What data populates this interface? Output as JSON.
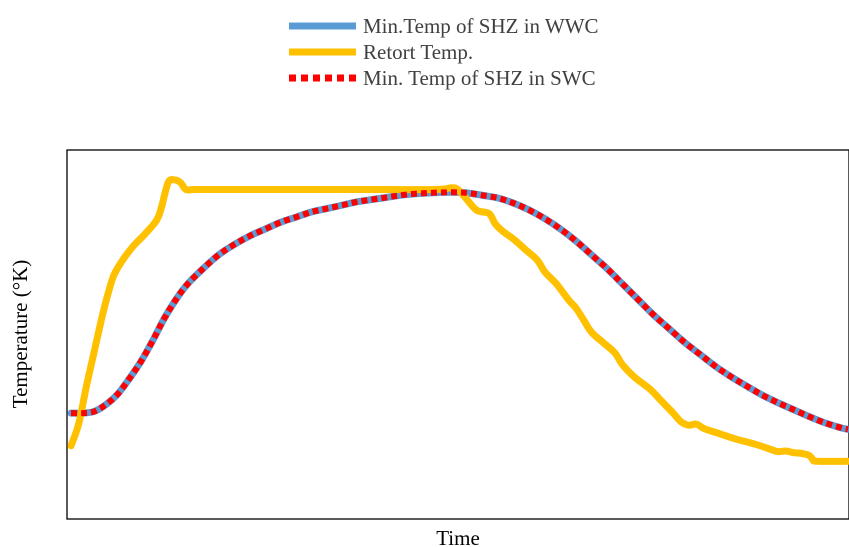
{
  "chart_data": {
    "type": "line",
    "title": "",
    "xlabel": "Time",
    "ylabel": "Temperature (°K)",
    "xlim": [
      0,
      100
    ],
    "ylim": [
      0,
      100
    ],
    "grid": false,
    "legend_position": "top-center",
    "series": [
      {
        "name": "Min.Temp of SHZ in WWC",
        "color": "#5b9bd5",
        "style": "solid",
        "points": [
          [
            0,
            27.0
          ],
          [
            1.5,
            27.0
          ],
          [
            3,
            27.5
          ],
          [
            4.5,
            29.5
          ],
          [
            6,
            32.5
          ],
          [
            7.5,
            37.0
          ],
          [
            9,
            42.0
          ],
          [
            10.5,
            48.0
          ],
          [
            12,
            54.5
          ],
          [
            13.5,
            60.0
          ],
          [
            15,
            64.5
          ],
          [
            17,
            69.0
          ],
          [
            19,
            73.0
          ],
          [
            21,
            76.0
          ],
          [
            23,
            78.5
          ],
          [
            25,
            80.5
          ],
          [
            27,
            82.5
          ],
          [
            29,
            84.0
          ],
          [
            31,
            85.5
          ],
          [
            33,
            86.5
          ],
          [
            35,
            87.5
          ],
          [
            37,
            88.5
          ],
          [
            40,
            89.5
          ],
          [
            43,
            90.5
          ],
          [
            46,
            91.0
          ],
          [
            49,
            91.2
          ],
          [
            51,
            91.0
          ],
          [
            53,
            90.3
          ],
          [
            55,
            89.5
          ],
          [
            57,
            88.0
          ],
          [
            59,
            86.0
          ],
          [
            61,
            83.5
          ],
          [
            63,
            80.5
          ],
          [
            65,
            77.0
          ],
          [
            67,
            73.0
          ],
          [
            69,
            69.0
          ],
          [
            71,
            64.5
          ],
          [
            73,
            60.0
          ],
          [
            75,
            55.5
          ],
          [
            77,
            51.5
          ],
          [
            79,
            47.5
          ],
          [
            81,
            44.0
          ],
          [
            83,
            40.5
          ],
          [
            85,
            37.5
          ],
          [
            87,
            34.8
          ],
          [
            89,
            32.2
          ],
          [
            91,
            30.0
          ],
          [
            93,
            28.0
          ],
          [
            95,
            26.0
          ],
          [
            97,
            24.2
          ],
          [
            99,
            22.8
          ],
          [
            100,
            22.3
          ]
        ]
      },
      {
        "name": "Retort Temp.",
        "color": "#ffc000",
        "style": "solid",
        "points": [
          [
            0,
            17.5
          ],
          [
            1,
            24.0
          ],
          [
            2,
            35.0
          ],
          [
            3,
            45.0
          ],
          [
            4,
            55.0
          ],
          [
            4.8,
            62.0
          ],
          [
            5.5,
            67.0
          ],
          [
            6.5,
            71.0
          ],
          [
            8,
            75.5
          ],
          [
            9.5,
            79.0
          ],
          [
            11,
            83.0
          ],
          [
            11.6,
            86.5
          ],
          [
            12.5,
            94.0
          ],
          [
            13.3,
            94.8
          ],
          [
            14.1,
            94.0
          ],
          [
            14.8,
            92.0
          ],
          [
            16,
            92.0
          ],
          [
            20,
            92.0
          ],
          [
            30,
            92.0
          ],
          [
            40,
            92.0
          ],
          [
            47,
            92.0
          ],
          [
            49,
            92.5
          ],
          [
            49.8,
            92.0
          ],
          [
            50.8,
            89.5
          ],
          [
            52.2,
            86.0
          ],
          [
            53.8,
            85.0
          ],
          [
            54.6,
            82.0
          ],
          [
            55.5,
            80.0
          ],
          [
            57,
            77.5
          ],
          [
            58.5,
            74.5
          ],
          [
            60,
            71.5
          ],
          [
            61,
            68.0
          ],
          [
            62.5,
            64.5
          ],
          [
            64,
            60.0
          ],
          [
            65,
            57.5
          ],
          [
            66,
            54.0
          ],
          [
            67,
            50.5
          ],
          [
            68.5,
            47.5
          ],
          [
            70,
            44.5
          ],
          [
            71,
            41.0
          ],
          [
            72.5,
            37.5
          ],
          [
            74.5,
            34.0
          ],
          [
            76,
            30.5
          ],
          [
            77.5,
            27.0
          ],
          [
            78.5,
            24.5
          ],
          [
            79.5,
            23.5
          ],
          [
            80.5,
            23.8
          ],
          [
            81.5,
            22.5
          ],
          [
            83.5,
            21.0
          ],
          [
            85.5,
            19.5
          ],
          [
            88,
            18.0
          ],
          [
            90,
            16.5
          ],
          [
            91,
            15.8
          ],
          [
            92,
            16.0
          ],
          [
            93,
            15.5
          ],
          [
            94,
            15.3
          ],
          [
            95,
            14.7
          ],
          [
            95.5,
            13.5
          ],
          [
            96,
            13.0
          ],
          [
            100,
            13.0
          ]
        ]
      },
      {
        "name": "Min. Temp of SHZ in SWC",
        "color": "#ff0000",
        "style": "dotted",
        "points": [
          [
            0,
            27.0
          ],
          [
            1.5,
            27.0
          ],
          [
            3,
            27.5
          ],
          [
            4.5,
            29.5
          ],
          [
            6,
            32.5
          ],
          [
            7.5,
            37.0
          ],
          [
            9,
            42.0
          ],
          [
            10.5,
            48.0
          ],
          [
            12,
            54.5
          ],
          [
            13.5,
            60.0
          ],
          [
            15,
            64.5
          ],
          [
            17,
            69.0
          ],
          [
            19,
            73.0
          ],
          [
            21,
            76.0
          ],
          [
            23,
            78.5
          ],
          [
            25,
            80.5
          ],
          [
            27,
            82.5
          ],
          [
            29,
            84.0
          ],
          [
            31,
            85.5
          ],
          [
            33,
            86.5
          ],
          [
            35,
            87.5
          ],
          [
            37,
            88.5
          ],
          [
            40,
            89.5
          ],
          [
            43,
            90.5
          ],
          [
            46,
            91.0
          ],
          [
            49,
            91.2
          ],
          [
            51,
            91.0
          ],
          [
            53,
            90.3
          ],
          [
            55,
            89.5
          ],
          [
            57,
            88.0
          ],
          [
            59,
            86.0
          ],
          [
            61,
            83.5
          ],
          [
            63,
            80.5
          ],
          [
            65,
            77.0
          ],
          [
            67,
            73.0
          ],
          [
            69,
            69.0
          ],
          [
            71,
            64.5
          ],
          [
            73,
            60.0
          ],
          [
            75,
            55.5
          ],
          [
            77,
            51.5
          ],
          [
            79,
            47.5
          ],
          [
            81,
            44.0
          ],
          [
            83,
            40.5
          ],
          [
            85,
            37.5
          ],
          [
            87,
            34.8
          ],
          [
            89,
            32.2
          ],
          [
            91,
            30.0
          ],
          [
            93,
            28.0
          ],
          [
            95,
            26.0
          ],
          [
            97,
            24.2
          ],
          [
            99,
            22.8
          ],
          [
            100,
            22.3
          ]
        ]
      }
    ]
  }
}
